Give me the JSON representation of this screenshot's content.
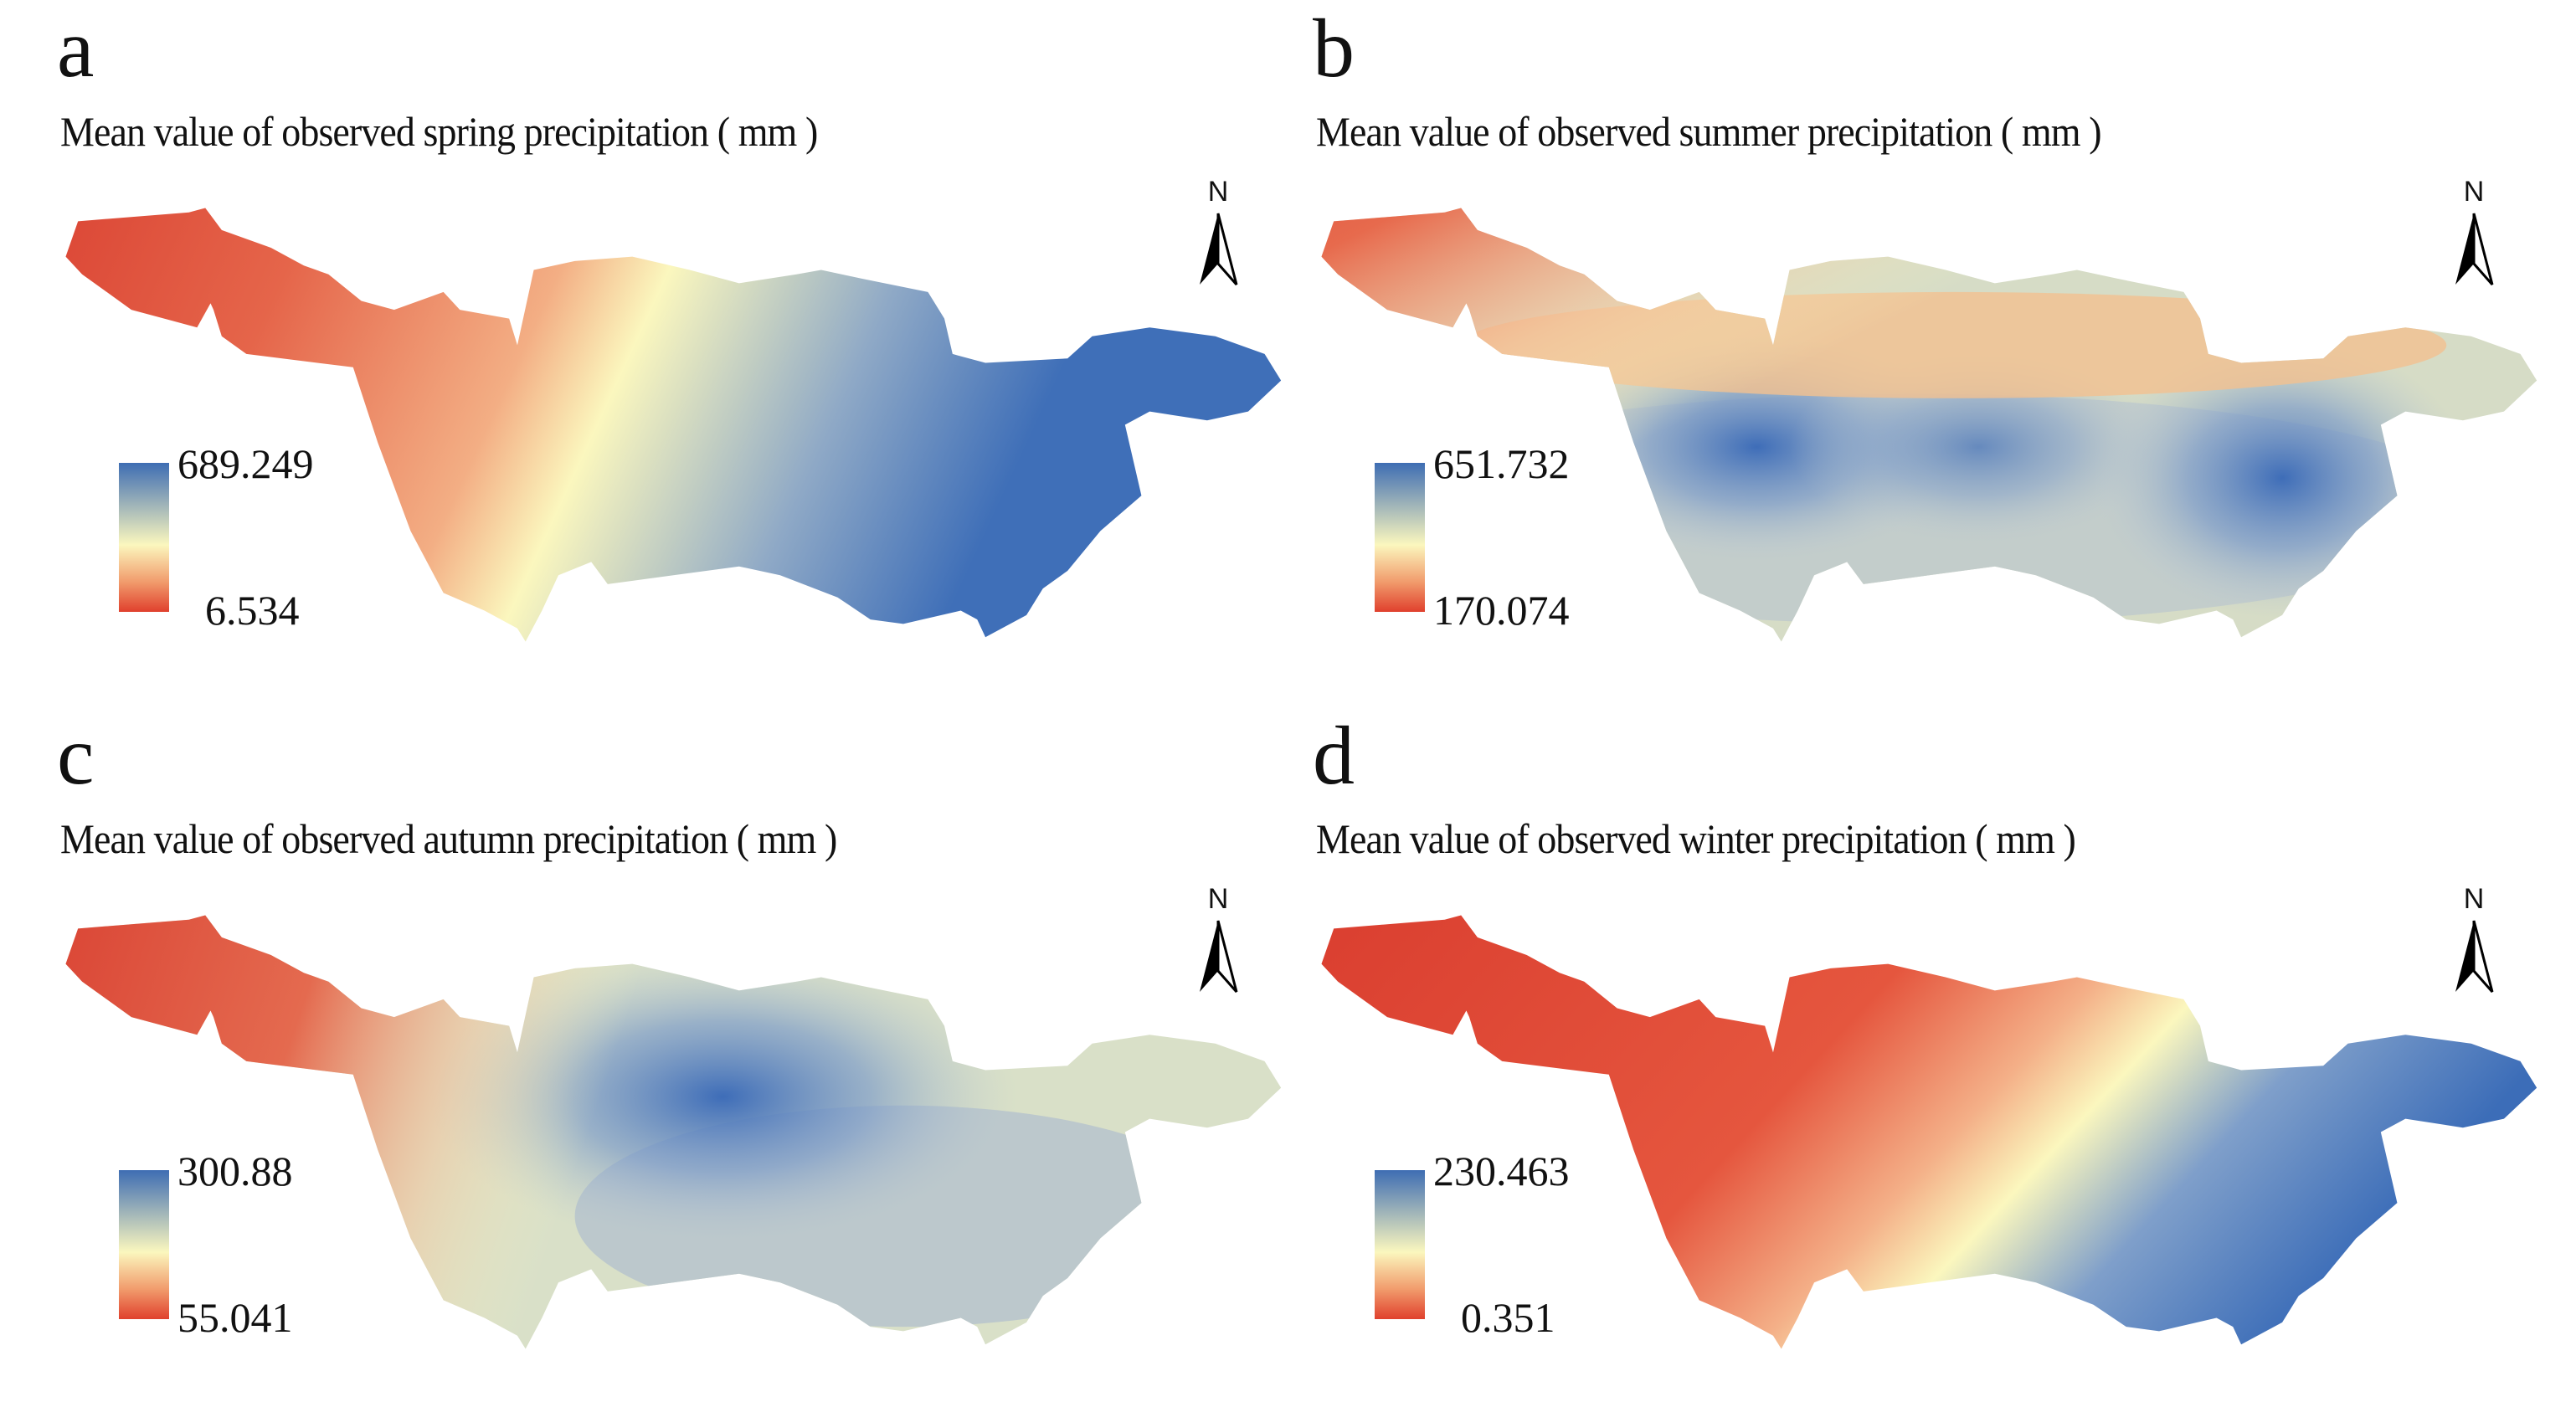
{
  "panels": [
    {
      "letter": "a",
      "title": "Mean value of observed spring precipitation ( mm )",
      "legend_max": "689.249",
      "legend_min": "6.534",
      "north": "N"
    },
    {
      "letter": "b",
      "title": "Mean value of observed summer precipitation ( mm )",
      "legend_max": "651.732",
      "legend_min": "170.074",
      "north": "N"
    },
    {
      "letter": "c",
      "title": "Mean value of observed autumn precipitation ( mm )",
      "legend_max": "300.88",
      "legend_min": "55.041",
      "north": "N"
    },
    {
      "letter": "d",
      "title": "Mean value of observed winter precipitation ( mm )",
      "legend_max": "230.463",
      "legend_min": "0.351",
      "north": "N"
    }
  ],
  "colors": {
    "low": "#d73027",
    "mid": "#fbf7be",
    "high": "#3b6fba"
  }
}
